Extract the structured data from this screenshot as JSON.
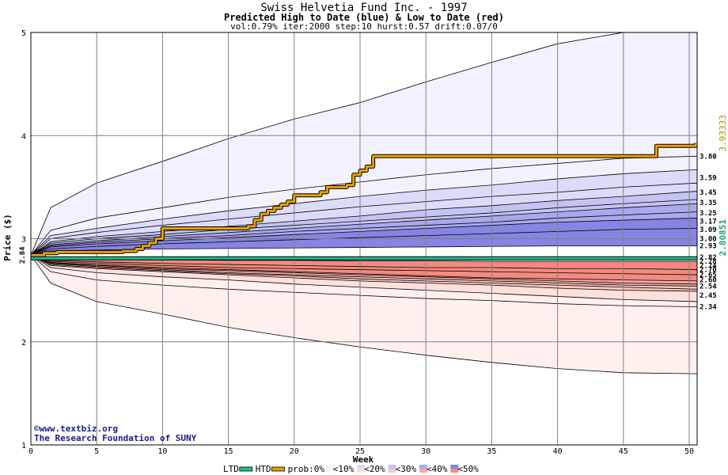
{
  "chart_data": {
    "type": "area",
    "title": "Swiss Helvetia Fund Inc. - 1997",
    "subtitle": "Predicted High to Date (blue) &  Low to Date (red)",
    "params": "vol:0.79% iter:2000 step:10 hurst:0.57 drift:0.07/0",
    "xlabel": "Week",
    "ylabel": "Price ($)",
    "xlim": [
      0,
      50.6
    ],
    "ylim": [
      1,
      5
    ],
    "x_ticks": [
      "0",
      "5",
      "10",
      "15",
      "20",
      "25",
      "30",
      "35",
      "40",
      "45",
      "50"
    ],
    "y_ticks": [
      "1",
      "2",
      "3",
      "4",
      "5"
    ],
    "start_price": 2.84,
    "start_label": "2.84",
    "htd_final_label": "3.93333",
    "ltd_final_label": "2.80851",
    "grid": true,
    "high_bands": [
      {
        "pct": "<10%",
        "color": "#f2f2ff",
        "outer": [
          2.84,
          3.3,
          3.54,
          3.75,
          3.97,
          4.16,
          4.32,
          4.52,
          4.71,
          4.89,
          5.02,
          5.08
        ]
      },
      {
        "pct": "<20%",
        "color": "#dcdcfa",
        "outer": [
          2.84,
          3.03,
          3.1,
          3.19,
          3.27,
          3.34,
          3.41,
          3.47,
          3.52,
          3.58,
          3.63,
          3.67
        ]
      },
      {
        "pct": "<30%",
        "color": "#c4c4f4",
        "outer": [
          2.84,
          2.97,
          3.02,
          3.07,
          3.12,
          3.17,
          3.22,
          3.28,
          3.32,
          3.37,
          3.41,
          3.46
        ]
      },
      {
        "pct": "<40%",
        "color": "#a9a9ee",
        "outer": [
          2.84,
          2.94,
          2.98,
          3.02,
          3.06,
          3.1,
          3.14,
          3.18,
          3.22,
          3.26,
          3.3,
          3.34
        ]
      },
      {
        "pct": "<50%",
        "color": "#8585e4",
        "outer": [
          2.84,
          2.92,
          2.95,
          2.98,
          3.01,
          3.04,
          3.07,
          3.1,
          3.13,
          3.16,
          3.18,
          3.2
        ]
      }
    ],
    "high_inner": [
      2.84,
      2.88,
      2.89,
      2.9,
      2.905,
      2.91,
      2.915,
      2.92,
      2.925,
      2.93,
      2.93,
      2.93
    ],
    "high_lines": [
      [
        2.84,
        3.3,
        3.54,
        3.75,
        3.97,
        4.16,
        4.32,
        4.52,
        4.71,
        4.89,
        5.02,
        5.08
      ],
      [
        2.84,
        3.08,
        3.2,
        3.3,
        3.4,
        3.48,
        3.55,
        3.62,
        3.68,
        3.73,
        3.78,
        3.8
      ],
      [
        2.84,
        3.03,
        3.1,
        3.19,
        3.27,
        3.34,
        3.41,
        3.47,
        3.52,
        3.58,
        3.63,
        3.67
      ],
      [
        2.84,
        3.0,
        3.06,
        3.13,
        3.19,
        3.25,
        3.31,
        3.36,
        3.41,
        3.45,
        3.5,
        3.54
      ],
      [
        2.84,
        2.97,
        3.02,
        3.07,
        3.12,
        3.17,
        3.22,
        3.28,
        3.32,
        3.37,
        3.41,
        3.46
      ],
      [
        2.84,
        2.955,
        3.0,
        3.04,
        3.09,
        3.13,
        3.17,
        3.21,
        3.25,
        3.3,
        3.34,
        3.38
      ],
      [
        2.84,
        2.94,
        2.98,
        3.02,
        3.06,
        3.1,
        3.14,
        3.18,
        3.22,
        3.26,
        3.3,
        3.34
      ],
      [
        2.84,
        2.93,
        2.965,
        3.0,
        3.03,
        3.07,
        3.1,
        3.13,
        3.16,
        3.2,
        3.23,
        3.26
      ],
      [
        2.84,
        2.92,
        2.95,
        2.98,
        3.01,
        3.04,
        3.07,
        3.1,
        3.13,
        3.16,
        3.18,
        3.2
      ],
      [
        2.84,
        2.9,
        2.925,
        2.95,
        2.97,
        2.99,
        3.01,
        3.03,
        3.05,
        3.07,
        3.09,
        3.1
      ],
      [
        2.84,
        2.88,
        2.89,
        2.9,
        2.905,
        2.91,
        2.915,
        2.92,
        2.925,
        2.93,
        2.93,
        2.93
      ]
    ],
    "low_bands": [
      {
        "pct": "<10%",
        "color": "#fff0ee",
        "outer": [
          2.84,
          2.57,
          2.39,
          2.27,
          2.14,
          2.04,
          1.95,
          1.87,
          1.8,
          1.74,
          1.7,
          1.69
        ]
      },
      {
        "pct": "<20%",
        "color": "#fde0db",
        "outer": [
          2.84,
          2.72,
          2.67,
          2.63,
          2.6,
          2.56,
          2.53,
          2.5,
          2.47,
          2.44,
          2.41,
          2.39
        ]
      },
      {
        "pct": "<30%",
        "color": "#fbc8c0",
        "outer": [
          2.84,
          2.74,
          2.71,
          2.68,
          2.65,
          2.62,
          2.59,
          2.57,
          2.55,
          2.52,
          2.5,
          2.49
        ]
      },
      {
        "pct": "<40%",
        "color": "#f8a9a0",
        "outer": [
          2.84,
          2.76,
          2.73,
          2.7,
          2.67,
          2.65,
          2.63,
          2.61,
          2.59,
          2.57,
          2.55,
          2.54
        ]
      },
      {
        "pct": "<50%",
        "color": "#f48a80",
        "outer": [
          2.84,
          2.77,
          2.745,
          2.72,
          2.7,
          2.68,
          2.66,
          2.64,
          2.62,
          2.61,
          2.6,
          2.59
        ]
      }
    ],
    "low_inner": [
      2.84,
      2.81,
      2.8,
      2.795,
      2.79,
      2.79,
      2.785,
      2.785,
      2.78,
      2.78,
      2.78,
      2.78
    ],
    "low_lines": [
      [
        2.84,
        2.57,
        2.39,
        2.27,
        2.14,
        2.04,
        1.95,
        1.87,
        1.8,
        1.74,
        1.7,
        1.69
      ],
      [
        2.84,
        2.68,
        2.6,
        2.55,
        2.51,
        2.48,
        2.45,
        2.42,
        2.4,
        2.37,
        2.35,
        2.34
      ],
      [
        2.84,
        2.72,
        2.67,
        2.63,
        2.6,
        2.56,
        2.53,
        2.5,
        2.47,
        2.44,
        2.41,
        2.39
      ],
      [
        2.84,
        2.74,
        2.71,
        2.68,
        2.65,
        2.62,
        2.59,
        2.57,
        2.55,
        2.52,
        2.5,
        2.49
      ],
      [
        2.84,
        2.75,
        2.72,
        2.69,
        2.66,
        2.64,
        2.61,
        2.59,
        2.57,
        2.55,
        2.53,
        2.51
      ],
      [
        2.84,
        2.76,
        2.73,
        2.7,
        2.67,
        2.65,
        2.63,
        2.61,
        2.59,
        2.57,
        2.55,
        2.54
      ],
      [
        2.84,
        2.765,
        2.74,
        2.71,
        2.69,
        2.67,
        2.65,
        2.63,
        2.61,
        2.59,
        2.57,
        2.56
      ],
      [
        2.84,
        2.77,
        2.745,
        2.72,
        2.7,
        2.68,
        2.66,
        2.64,
        2.62,
        2.61,
        2.6,
        2.59
      ],
      [
        2.84,
        2.78,
        2.76,
        2.74,
        2.72,
        2.71,
        2.7,
        2.69,
        2.68,
        2.67,
        2.66,
        2.65
      ],
      [
        2.84,
        2.79,
        2.775,
        2.76,
        2.75,
        2.74,
        2.73,
        2.72,
        2.72,
        2.71,
        2.71,
        2.7
      ],
      [
        2.84,
        2.81,
        2.8,
        2.795,
        2.79,
        2.79,
        2.785,
        2.785,
        2.78,
        2.78,
        2.78,
        2.78
      ]
    ],
    "band_weeks": [
      0,
      1.5,
      5,
      10,
      15,
      20,
      25,
      30,
      35,
      40,
      45,
      50.6
    ],
    "series": [
      {
        "name": "HTD",
        "color": "#e8a000",
        "x": [
          0,
          1,
          2,
          3,
          4,
          5,
          6,
          7,
          8,
          8.5,
          9,
          9.5,
          10,
          15,
          16,
          16.5,
          17,
          17.5,
          18,
          18.5,
          19,
          19.5,
          20,
          21,
          22,
          22.5,
          23,
          24,
          24.5,
          25,
          25.5,
          26,
          30,
          35,
          40,
          45,
          47,
          47.5,
          50,
          50.5
        ],
        "y": [
          2.84,
          2.86,
          2.87,
          2.87,
          2.87,
          2.87,
          2.87,
          2.88,
          2.9,
          2.93,
          2.96,
          3.0,
          3.1,
          3.1,
          3.1,
          3.12,
          3.18,
          3.24,
          3.27,
          3.3,
          3.33,
          3.36,
          3.42,
          3.42,
          3.45,
          3.5,
          3.5,
          3.52,
          3.62,
          3.66,
          3.7,
          3.8,
          3.8,
          3.8,
          3.8,
          3.8,
          3.8,
          3.9,
          3.9,
          3.93
        ]
      },
      {
        "name": "LTD",
        "color": "#1fbf8f",
        "x": [
          0,
          50.6
        ],
        "y": [
          2.81,
          2.81
        ]
      }
    ],
    "right_labels": [
      {
        "text": "3.80",
        "value": 3.8
      },
      {
        "text": "3.59",
        "value": 3.59
      },
      {
        "text": "3.45",
        "value": 3.45
      },
      {
        "text": "3.35",
        "value": 3.35
      },
      {
        "text": "3.25",
        "value": 3.25
      },
      {
        "text": "3.17",
        "value": 3.17
      },
      {
        "text": "3.09",
        "value": 3.09
      },
      {
        "text": "3.00",
        "value": 3.0
      },
      {
        "text": "2.93",
        "value": 2.93
      },
      {
        "text": "2.82",
        "value": 2.82
      },
      {
        "text": "2.78",
        "value": 2.78
      },
      {
        "text": "2.74",
        "value": 2.74
      },
      {
        "text": "2.70",
        "value": 2.7
      },
      {
        "text": "2.65",
        "value": 2.65
      },
      {
        "text": "2.60",
        "value": 2.6
      },
      {
        "text": "2.54",
        "value": 2.54
      },
      {
        "text": "2.45",
        "value": 2.45
      },
      {
        "text": "2.34",
        "value": 2.34
      }
    ],
    "credit_lines": [
      "©www.textbiz.org",
      "The Research Foundation of SUNY"
    ],
    "legend": [
      {
        "label": "LTD",
        "kind": "line",
        "color": "#1fbf8f"
      },
      {
        "label": "HTD",
        "kind": "line",
        "color": "#e8a000"
      },
      {
        "label": "prob:0%",
        "kind": "none"
      },
      {
        "label": "<10%",
        "kind": "swatch",
        "high": "#f2f2ff",
        "low": "#fff0ee"
      },
      {
        "label": "<20%",
        "kind": "swatch",
        "high": "#dcdcfa",
        "low": "#fde0db"
      },
      {
        "label": "<30%",
        "kind": "swatch",
        "high": "#c4c4f4",
        "low": "#fbc8c0"
      },
      {
        "label": "<40%",
        "kind": "swatch",
        "high": "#a9a9ee",
        "low": "#f8a9a0"
      },
      {
        "label": "<50%",
        "kind": "swatch",
        "high": "#8585e4",
        "low": "#f48a80"
      }
    ]
  }
}
